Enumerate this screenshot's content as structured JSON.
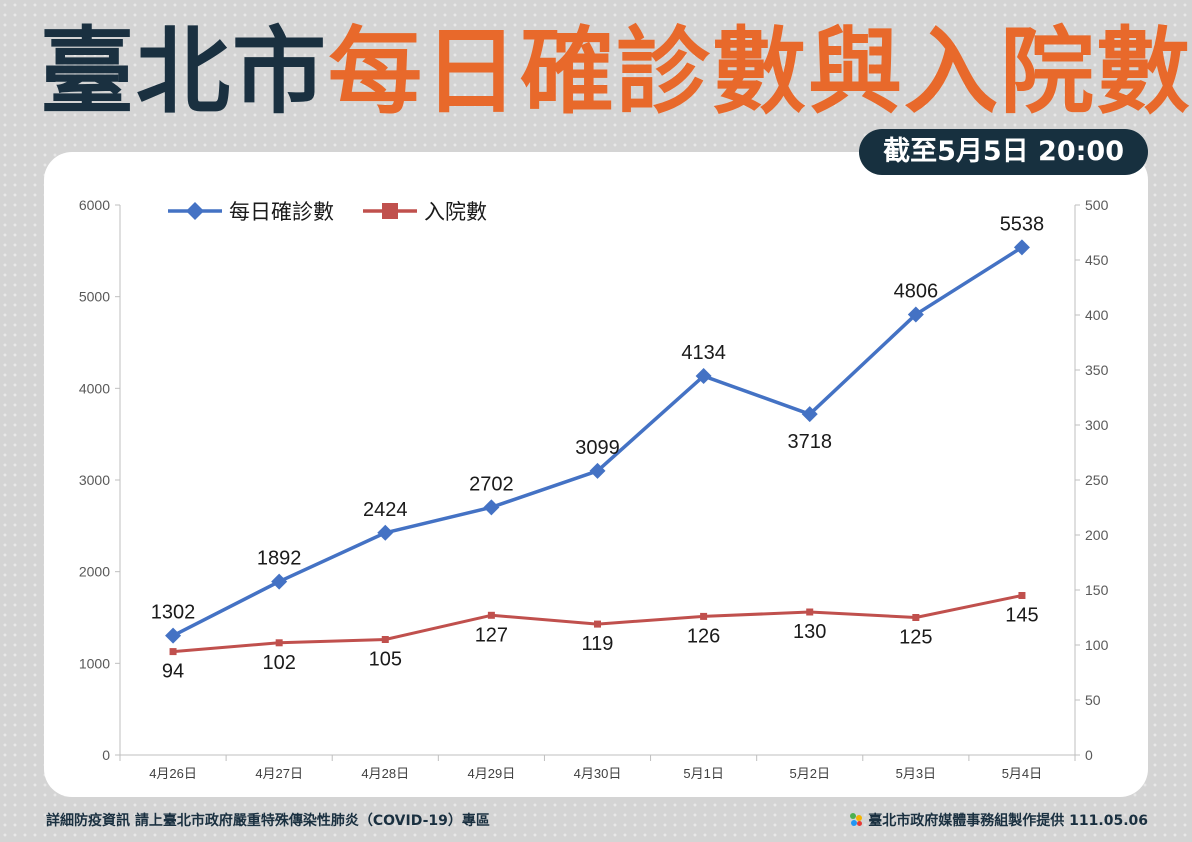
{
  "title": {
    "part1": "臺北市",
    "part2": "每日確診數與入院數"
  },
  "date_badge": "截至5月5日 20:00",
  "footer": {
    "left": "詳細防疫資訊 請上臺北市政府嚴重特殊傳染性肺炎（COVID-19）專區",
    "right": "臺北市政府媒體事務組製作提供 111.05.06"
  },
  "colors": {
    "daily": "#4472c4",
    "hosp": "#c0504d",
    "title_dark": "#1a3040",
    "title_orange": "#e8692b"
  },
  "chart_data": {
    "type": "line",
    "categories": [
      "4月26日",
      "4月27日",
      "4月28日",
      "4月29日",
      "4月30日",
      "5月1日",
      "5月2日",
      "5月3日",
      "5月4日"
    ],
    "series": [
      {
        "name": "每日確診數",
        "axis": "left",
        "marker": "diamond",
        "values": [
          1302,
          1892,
          2424,
          2702,
          3099,
          4134,
          3718,
          4806,
          5538
        ]
      },
      {
        "name": "入院數",
        "axis": "right",
        "marker": "square",
        "values": [
          94,
          102,
          105,
          127,
          119,
          126,
          130,
          125,
          145
        ]
      }
    ],
    "y_left": {
      "range": [
        0,
        6000
      ],
      "ticks": [
        0,
        1000,
        2000,
        3000,
        4000,
        5000,
        6000
      ]
    },
    "y_right": {
      "range": [
        0,
        500
      ],
      "ticks": [
        0,
        50,
        100,
        150,
        200,
        250,
        300,
        350,
        400,
        450,
        500
      ]
    },
    "grid": false,
    "legend": "top-left"
  }
}
